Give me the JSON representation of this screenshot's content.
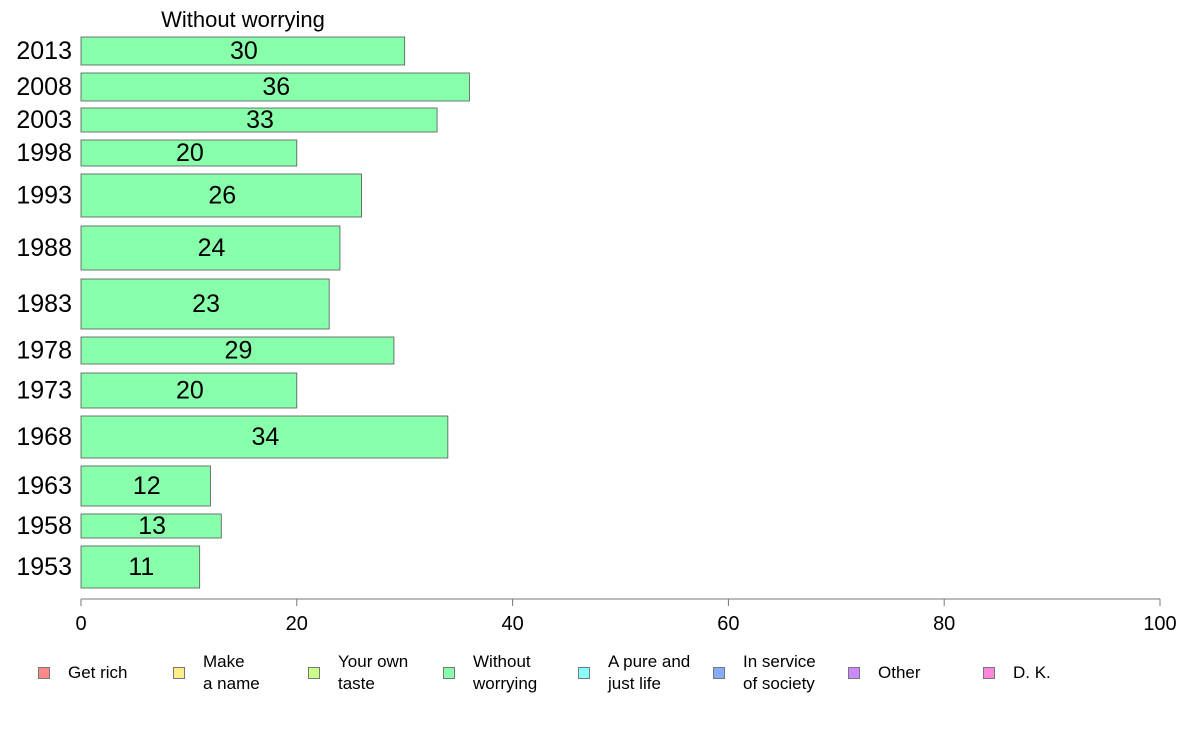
{
  "chart_data": {
    "type": "bar",
    "orientation": "horizontal",
    "title": "Without worrying",
    "categories": [
      "2013",
      "2008",
      "2003",
      "1998",
      "1993",
      "1988",
      "1983",
      "1978",
      "1973",
      "1968",
      "1963",
      "1958",
      "1953"
    ],
    "values": [
      30,
      36,
      33,
      20,
      26,
      24,
      23,
      29,
      20,
      34,
      12,
      13,
      11
    ],
    "bar_label_values": [
      "30",
      "36",
      "33",
      "20",
      "26",
      "24",
      "23",
      "29",
      "20",
      "34",
      "12",
      "13",
      "11"
    ],
    "xlim": [
      0,
      100
    ],
    "xticks": [
      "0",
      "20",
      "40",
      "60",
      "80",
      "100"
    ],
    "grid": false,
    "bar_color": "#88ffaa",
    "legend_placement": "bottom",
    "legend": [
      {
        "label": "Get rich",
        "color": "#ff8888"
      },
      {
        "label": "Make\na name",
        "color": "#ffee88"
      },
      {
        "label": "Your own\ntaste",
        "color": "#ccff88"
      },
      {
        "label": "Without\nworrying",
        "color": "#88ffaa"
      },
      {
        "label": "A pure and\njust life",
        "color": "#88ffff"
      },
      {
        "label": "In service\nof society",
        "color": "#88aaff"
      },
      {
        "label": "Other",
        "color": "#cc88ff"
      },
      {
        "label": "D. K.",
        "color": "#ff88dd"
      }
    ]
  }
}
